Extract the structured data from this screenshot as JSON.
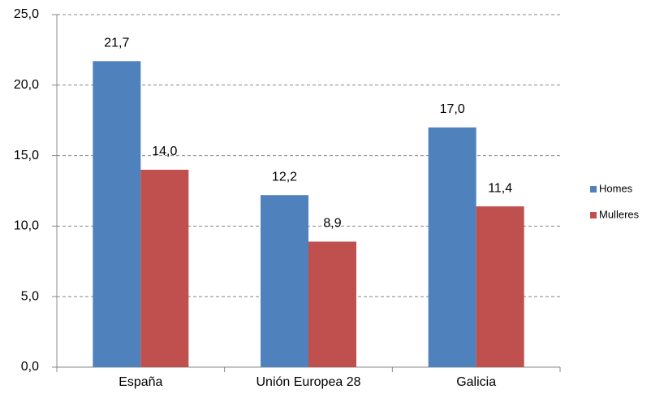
{
  "chart_data": {
    "type": "bar",
    "categories": [
      "España",
      "Unión Europea 28",
      "Galicia"
    ],
    "series": [
      {
        "name": "Homes",
        "color": "#4f81bd",
        "values": [
          21.7,
          12.2,
          17.0
        ],
        "value_labels": [
          "21,7",
          "12,2",
          "17,0"
        ]
      },
      {
        "name": "Mulleres",
        "color": "#c0504d",
        "values": [
          14.0,
          8.9,
          11.4
        ],
        "value_labels": [
          "14,0",
          "8,9",
          "11,4"
        ]
      }
    ],
    "ylim": [
      0,
      25
    ],
    "yticks": [
      {
        "value": 0,
        "label": "0,0"
      },
      {
        "value": 5,
        "label": "5,0"
      },
      {
        "value": 10,
        "label": "10,0"
      },
      {
        "value": 15,
        "label": "15,0"
      },
      {
        "value": 20,
        "label": "20,0"
      },
      {
        "value": 25,
        "label": "25,0"
      }
    ],
    "grid": true,
    "legend": "right"
  }
}
